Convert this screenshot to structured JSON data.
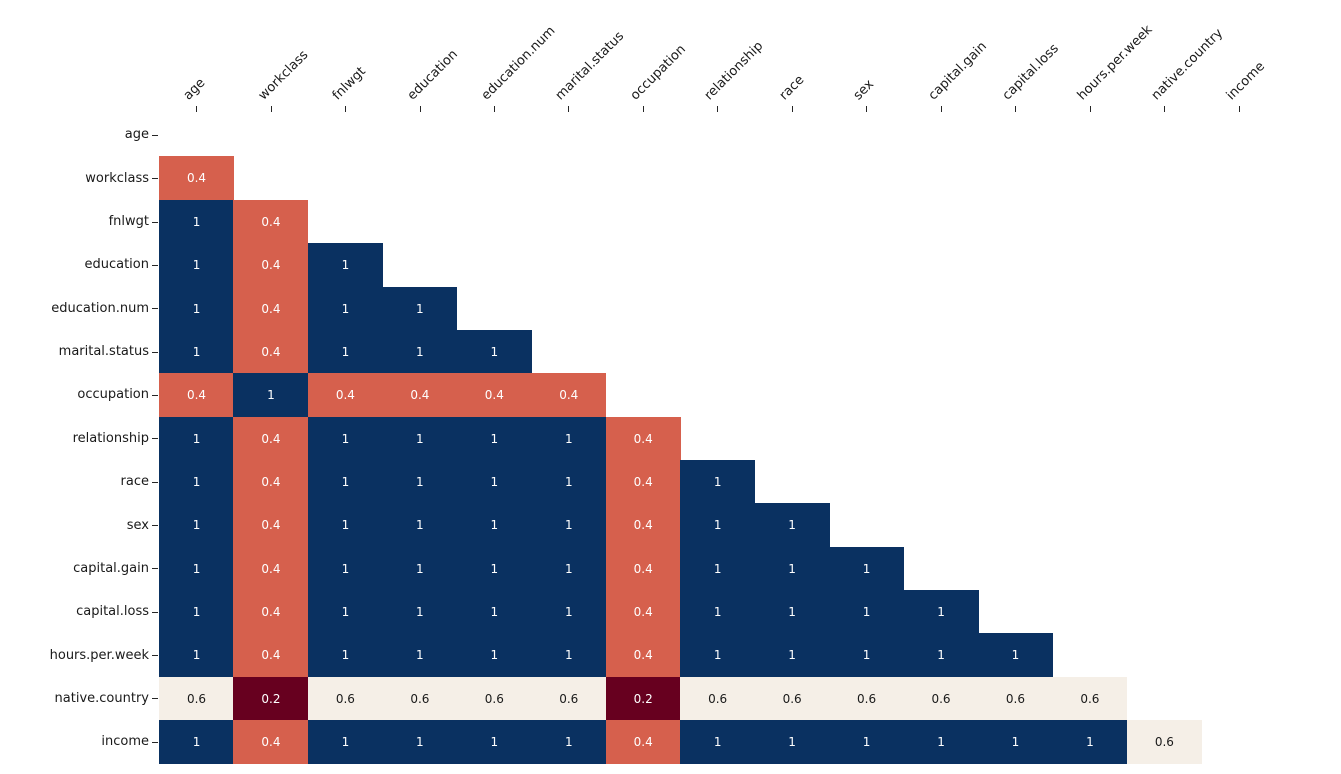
{
  "figure": {
    "background_color": "#ffffff",
    "title": ""
  },
  "chart_data": {
    "type": "heatmap",
    "shape": "lower-triangle",
    "title": "",
    "xlabel": "",
    "ylabel": "",
    "grid": false,
    "legend": "none",
    "x_labels": [
      "age",
      "workclass",
      "fnlwgt",
      "education",
      "education.num",
      "marital.status",
      "occupation",
      "relationship",
      "race",
      "sex",
      "capital.gain",
      "capital.loss",
      "hours.per.week",
      "native.country",
      "income"
    ],
    "y_labels": [
      "age",
      "workclass",
      "fnlwgt",
      "education",
      "education.num",
      "marital.status",
      "occupation",
      "relationship",
      "race",
      "sex",
      "capital.gain",
      "capital.loss",
      "hours.per.week",
      "native.country",
      "income"
    ],
    "matrix": [
      [
        null,
        null,
        null,
        null,
        null,
        null,
        null,
        null,
        null,
        null,
        null,
        null,
        null,
        null,
        null
      ],
      [
        0.4,
        null,
        null,
        null,
        null,
        null,
        null,
        null,
        null,
        null,
        null,
        null,
        null,
        null,
        null
      ],
      [
        1,
        0.4,
        null,
        null,
        null,
        null,
        null,
        null,
        null,
        null,
        null,
        null,
        null,
        null,
        null
      ],
      [
        1,
        0.4,
        1,
        null,
        null,
        null,
        null,
        null,
        null,
        null,
        null,
        null,
        null,
        null,
        null
      ],
      [
        1,
        0.4,
        1,
        1,
        null,
        null,
        null,
        null,
        null,
        null,
        null,
        null,
        null,
        null,
        null
      ],
      [
        1,
        0.4,
        1,
        1,
        1,
        null,
        null,
        null,
        null,
        null,
        null,
        null,
        null,
        null,
        null
      ],
      [
        0.4,
        1,
        0.4,
        0.4,
        0.4,
        0.4,
        null,
        null,
        null,
        null,
        null,
        null,
        null,
        null,
        null
      ],
      [
        1,
        0.4,
        1,
        1,
        1,
        1,
        0.4,
        null,
        null,
        null,
        null,
        null,
        null,
        null,
        null
      ],
      [
        1,
        0.4,
        1,
        1,
        1,
        1,
        0.4,
        1,
        null,
        null,
        null,
        null,
        null,
        null,
        null
      ],
      [
        1,
        0.4,
        1,
        1,
        1,
        1,
        0.4,
        1,
        1,
        null,
        null,
        null,
        null,
        null,
        null
      ],
      [
        1,
        0.4,
        1,
        1,
        1,
        1,
        0.4,
        1,
        1,
        1,
        null,
        null,
        null,
        null,
        null
      ],
      [
        1,
        0.4,
        1,
        1,
        1,
        1,
        0.4,
        1,
        1,
        1,
        1,
        null,
        null,
        null,
        null
      ],
      [
        1,
        0.4,
        1,
        1,
        1,
        1,
        0.4,
        1,
        1,
        1,
        1,
        1,
        null,
        null,
        null
      ],
      [
        0.6,
        0.2,
        0.6,
        0.6,
        0.6,
        0.6,
        0.2,
        0.6,
        0.6,
        0.6,
        0.6,
        0.6,
        0.6,
        null,
        null
      ],
      [
        1,
        0.4,
        1,
        1,
        1,
        1,
        0.4,
        1,
        1,
        1,
        1,
        1,
        1,
        0.6,
        null
      ]
    ],
    "color_scale": {
      "0.2": "#67001f",
      "0.4": "#d6604d",
      "0.6": "#f5efe7",
      "1": "#0a3161"
    },
    "value_text_colors": {
      "0.2": "#ffffff",
      "0.4": "#ffffff",
      "0.6": "#1a1a1a",
      "1": "#ffffff"
    },
    "axis_tick_color": "#262626",
    "label_text_color": "#1a1a1a"
  }
}
